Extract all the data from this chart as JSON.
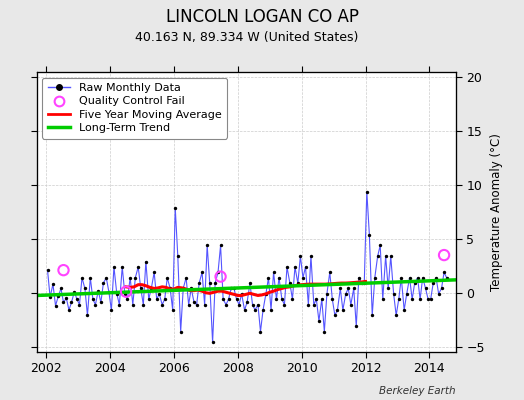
{
  "title": "LINCOLN LOGAN CO AP",
  "subtitle": "40.163 N, 89.334 W (United States)",
  "ylabel": "Temperature Anomaly (°C)",
  "watermark": "Berkeley Earth",
  "xlim": [
    2001.7,
    2014.83
  ],
  "ylim": [
    -5.5,
    20.5
  ],
  "yticks": [
    -5,
    0,
    5,
    10,
    15,
    20
  ],
  "xticks": [
    2002,
    2004,
    2006,
    2008,
    2010,
    2012,
    2014
  ],
  "bg_color": "#e8e8e8",
  "plot_bg_color": "#ffffff",
  "raw_color": "#5555ff",
  "dot_color": "#000000",
  "ma_color": "#ff0000",
  "trend_color": "#00cc00",
  "qc_color": "#ff44ff",
  "grid_color": "#cccccc",
  "raw_data": [
    [
      2002.04,
      2.1
    ],
    [
      2002.12,
      -0.4
    ],
    [
      2002.21,
      0.8
    ],
    [
      2002.29,
      -1.2
    ],
    [
      2002.38,
      -0.3
    ],
    [
      2002.46,
      0.4
    ],
    [
      2002.54,
      -0.9
    ],
    [
      2002.63,
      -0.5
    ],
    [
      2002.71,
      -1.6
    ],
    [
      2002.79,
      -0.9
    ],
    [
      2002.88,
      0.1
    ],
    [
      2002.96,
      -0.6
    ],
    [
      2003.04,
      -1.1
    ],
    [
      2003.12,
      1.4
    ],
    [
      2003.21,
      0.4
    ],
    [
      2003.29,
      -2.1
    ],
    [
      2003.38,
      1.4
    ],
    [
      2003.46,
      -0.6
    ],
    [
      2003.54,
      -1.1
    ],
    [
      2003.63,
      0.2
    ],
    [
      2003.71,
      -0.9
    ],
    [
      2003.79,
      0.9
    ],
    [
      2003.88,
      1.4
    ],
    [
      2003.96,
      0.1
    ],
    [
      2004.04,
      -1.6
    ],
    [
      2004.12,
      2.4
    ],
    [
      2004.21,
      -0.1
    ],
    [
      2004.29,
      -1.1
    ],
    [
      2004.38,
      2.4
    ],
    [
      2004.46,
      -0.1
    ],
    [
      2004.54,
      -0.6
    ],
    [
      2004.63,
      1.4
    ],
    [
      2004.71,
      -1.1
    ],
    [
      2004.79,
      1.4
    ],
    [
      2004.88,
      2.4
    ],
    [
      2004.96,
      0.4
    ],
    [
      2005.04,
      -1.1
    ],
    [
      2005.12,
      2.9
    ],
    [
      2005.21,
      -0.6
    ],
    [
      2005.29,
      0.4
    ],
    [
      2005.38,
      1.9
    ],
    [
      2005.46,
      -0.6
    ],
    [
      2005.54,
      -0.1
    ],
    [
      2005.63,
      -1.1
    ],
    [
      2005.71,
      -0.6
    ],
    [
      2005.79,
      1.4
    ],
    [
      2005.88,
      0.4
    ],
    [
      2005.96,
      -1.6
    ],
    [
      2006.04,
      7.9
    ],
    [
      2006.12,
      3.4
    ],
    [
      2006.21,
      -3.6
    ],
    [
      2006.29,
      0.4
    ],
    [
      2006.38,
      1.4
    ],
    [
      2006.46,
      -1.1
    ],
    [
      2006.54,
      0.4
    ],
    [
      2006.63,
      -0.9
    ],
    [
      2006.71,
      -1.1
    ],
    [
      2006.79,
      0.9
    ],
    [
      2006.88,
      1.9
    ],
    [
      2006.96,
      -1.1
    ],
    [
      2007.04,
      4.4
    ],
    [
      2007.12,
      0.9
    ],
    [
      2007.21,
      -4.6
    ],
    [
      2007.29,
      0.9
    ],
    [
      2007.38,
      1.9
    ],
    [
      2007.46,
      4.4
    ],
    [
      2007.54,
      -0.6
    ],
    [
      2007.63,
      -1.1
    ],
    [
      2007.71,
      -0.6
    ],
    [
      2007.79,
      0.4
    ],
    [
      2007.88,
      0.4
    ],
    [
      2007.96,
      -0.6
    ],
    [
      2008.04,
      -1.1
    ],
    [
      2008.12,
      -0.1
    ],
    [
      2008.21,
      -1.6
    ],
    [
      2008.29,
      -0.9
    ],
    [
      2008.38,
      0.9
    ],
    [
      2008.46,
      -1.1
    ],
    [
      2008.54,
      -1.6
    ],
    [
      2008.63,
      -1.1
    ],
    [
      2008.71,
      -3.6
    ],
    [
      2008.79,
      -1.6
    ],
    [
      2008.88,
      -0.1
    ],
    [
      2008.96,
      1.4
    ],
    [
      2009.04,
      -1.6
    ],
    [
      2009.12,
      1.9
    ],
    [
      2009.21,
      -0.6
    ],
    [
      2009.29,
      1.4
    ],
    [
      2009.38,
      -0.6
    ],
    [
      2009.46,
      -1.1
    ],
    [
      2009.54,
      2.4
    ],
    [
      2009.63,
      0.9
    ],
    [
      2009.71,
      -0.6
    ],
    [
      2009.79,
      2.4
    ],
    [
      2009.88,
      0.9
    ],
    [
      2009.96,
      3.4
    ],
    [
      2010.04,
      1.4
    ],
    [
      2010.12,
      2.4
    ],
    [
      2010.21,
      -1.1
    ],
    [
      2010.29,
      3.4
    ],
    [
      2010.38,
      -1.1
    ],
    [
      2010.46,
      -0.6
    ],
    [
      2010.54,
      -2.6
    ],
    [
      2010.63,
      -0.6
    ],
    [
      2010.71,
      -3.6
    ],
    [
      2010.79,
      -0.1
    ],
    [
      2010.88,
      1.9
    ],
    [
      2010.96,
      -0.6
    ],
    [
      2011.04,
      -2.1
    ],
    [
      2011.12,
      -1.6
    ],
    [
      2011.21,
      0.4
    ],
    [
      2011.29,
      -1.6
    ],
    [
      2011.38,
      -0.1
    ],
    [
      2011.46,
      0.4
    ],
    [
      2011.54,
      -1.1
    ],
    [
      2011.63,
      0.4
    ],
    [
      2011.71,
      -3.1
    ],
    [
      2011.79,
      1.4
    ],
    [
      2011.88,
      0.9
    ],
    [
      2011.96,
      0.9
    ],
    [
      2012.04,
      9.4
    ],
    [
      2012.12,
      5.4
    ],
    [
      2012.21,
      -2.1
    ],
    [
      2012.29,
      1.4
    ],
    [
      2012.38,
      3.4
    ],
    [
      2012.46,
      4.4
    ],
    [
      2012.54,
      -0.6
    ],
    [
      2012.63,
      3.4
    ],
    [
      2012.71,
      0.4
    ],
    [
      2012.79,
      3.4
    ],
    [
      2012.88,
      -0.1
    ],
    [
      2012.96,
      -2.1
    ],
    [
      2013.04,
      -0.6
    ],
    [
      2013.12,
      1.4
    ],
    [
      2013.21,
      -1.6
    ],
    [
      2013.29,
      -0.1
    ],
    [
      2013.38,
      1.4
    ],
    [
      2013.46,
      -0.6
    ],
    [
      2013.54,
      0.9
    ],
    [
      2013.63,
      1.4
    ],
    [
      2013.71,
      -0.6
    ],
    [
      2013.79,
      1.4
    ],
    [
      2013.88,
      0.4
    ],
    [
      2013.96,
      -0.6
    ],
    [
      2014.04,
      -0.6
    ],
    [
      2014.12,
      0.9
    ],
    [
      2014.21,
      1.4
    ],
    [
      2014.29,
      -0.1
    ],
    [
      2014.38,
      0.4
    ],
    [
      2014.46,
      1.9
    ],
    [
      2014.54,
      1.4
    ]
  ],
  "qc_fails": [
    [
      2002.54,
      2.1
    ],
    [
      2004.5,
      0.1
    ],
    [
      2007.46,
      1.5
    ],
    [
      2014.46,
      3.5
    ]
  ],
  "moving_avg": [
    [
      2004.5,
      0.55
    ],
    [
      2004.63,
      0.5
    ],
    [
      2004.75,
      0.55
    ],
    [
      2004.88,
      0.75
    ],
    [
      2005.0,
      0.75
    ],
    [
      2005.12,
      0.65
    ],
    [
      2005.25,
      0.5
    ],
    [
      2005.38,
      0.4
    ],
    [
      2005.5,
      0.45
    ],
    [
      2005.63,
      0.55
    ],
    [
      2005.75,
      0.5
    ],
    [
      2005.88,
      0.35
    ],
    [
      2006.0,
      0.35
    ],
    [
      2006.12,
      0.5
    ],
    [
      2006.25,
      0.45
    ],
    [
      2006.38,
      0.35
    ],
    [
      2006.5,
      0.2
    ],
    [
      2006.63,
      0.2
    ],
    [
      2006.75,
      0.25
    ],
    [
      2006.88,
      0.15
    ],
    [
      2007.0,
      0.0
    ],
    [
      2007.12,
      -0.05
    ],
    [
      2007.25,
      0.05
    ],
    [
      2007.38,
      0.15
    ],
    [
      2007.5,
      0.15
    ],
    [
      2007.63,
      0.05
    ],
    [
      2007.75,
      -0.05
    ],
    [
      2007.88,
      -0.15
    ],
    [
      2008.0,
      -0.25
    ],
    [
      2008.12,
      -0.25
    ],
    [
      2008.25,
      -0.15
    ],
    [
      2008.38,
      -0.05
    ],
    [
      2008.5,
      -0.15
    ],
    [
      2008.63,
      -0.25
    ],
    [
      2008.75,
      -0.2
    ],
    [
      2008.88,
      -0.1
    ],
    [
      2009.0,
      0.05
    ],
    [
      2009.12,
      0.15
    ],
    [
      2009.25,
      0.3
    ],
    [
      2009.38,
      0.4
    ],
    [
      2009.5,
      0.5
    ],
    [
      2009.63,
      0.55
    ],
    [
      2009.75,
      0.65
    ],
    [
      2009.88,
      0.7
    ],
    [
      2010.0,
      0.75
    ],
    [
      2010.12,
      0.78
    ],
    [
      2010.25,
      0.8
    ],
    [
      2010.38,
      0.8
    ],
    [
      2010.5,
      0.8
    ],
    [
      2010.63,
      0.8
    ],
    [
      2010.75,
      0.8
    ],
    [
      2010.88,
      0.82
    ],
    [
      2011.0,
      0.85
    ],
    [
      2011.12,
      0.88
    ],
    [
      2011.25,
      0.9
    ],
    [
      2011.38,
      0.9
    ],
    [
      2011.5,
      0.92
    ],
    [
      2011.63,
      0.95
    ],
    [
      2011.75,
      0.98
    ],
    [
      2011.88,
      1.0
    ],
    [
      2012.0,
      1.05
    ]
  ],
  "trend_x": [
    2001.7,
    2014.83
  ],
  "trend_y": [
    -0.25,
    1.2
  ],
  "legend_labels": [
    "Raw Monthly Data",
    "Quality Control Fail",
    "Five Year Moving Average",
    "Long-Term Trend"
  ]
}
